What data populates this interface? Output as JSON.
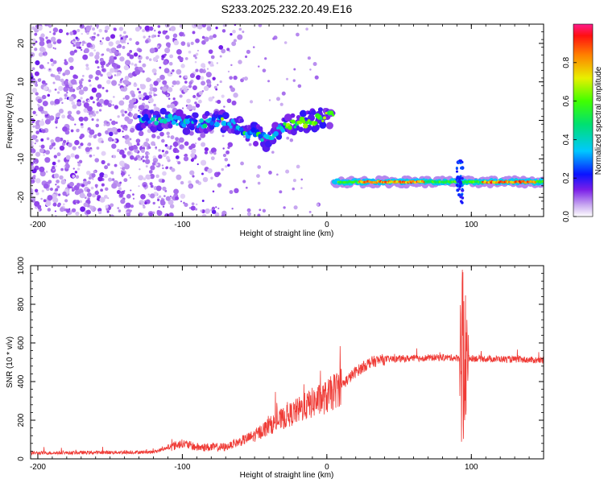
{
  "title": "S233.2025.232.20.49.E16",
  "chart_data": [
    {
      "type": "heatmap",
      "name": "spectrogram",
      "xlabel": "Height of straight line (km)",
      "ylabel": "Frequency (Hz)",
      "xlim": [
        -205,
        150
      ],
      "ylim": [
        -25,
        25
      ],
      "xticks": [
        -200,
        -100,
        0,
        100
      ],
      "yticks": [
        -20,
        -10,
        0,
        10,
        20
      ],
      "colorbar": {
        "label": "Normalized spectral amplitude",
        "range": [
          0.0,
          1.0
        ],
        "ticks": [
          0.0,
          0.2,
          0.4,
          0.6,
          0.8
        ],
        "tick_labels": [
          "0.0",
          "0.2",
          "0.4",
          "0.6",
          "0.8"
        ]
      },
      "features": {
        "noise_cloud": {
          "x_range": [
            -205,
            -60
          ],
          "y_range": [
            -25,
            25
          ],
          "amplitude": 0.1
        },
        "main_trace": [
          {
            "x": -130,
            "y": 0
          },
          {
            "x": -110,
            "y": 0.5
          },
          {
            "x": -90,
            "y": -1
          },
          {
            "x": -70,
            "y": 0
          },
          {
            "x": -55,
            "y": -3
          },
          {
            "x": -40,
            "y": -5
          },
          {
            "x": -30,
            "y": -1.5
          },
          {
            "x": -15,
            "y": -0.5
          },
          {
            "x": 0,
            "y": 1
          },
          {
            "x": 5,
            "y": 1
          }
        ],
        "lower_trace": {
          "x_range": [
            5,
            150
          ],
          "y": -16,
          "peak_amplitude": 0.95
        },
        "disturbance_x": 92
      }
    },
    {
      "type": "line",
      "name": "snr",
      "xlabel": "Height of straight line (km)",
      "ylabel": "SNR (10 * v/v)",
      "xlim": [
        -205,
        150
      ],
      "ylim": [
        0,
        1000
      ],
      "xticks": [
        -200,
        -100,
        0,
        100
      ],
      "yticks": [
        0,
        200,
        400,
        600,
        800,
        1000
      ],
      "color": "#ef3b36",
      "trend": [
        {
          "x": -205,
          "y": 30
        },
        {
          "x": -120,
          "y": 35
        },
        {
          "x": -100,
          "y": 80
        },
        {
          "x": -90,
          "y": 60
        },
        {
          "x": -70,
          "y": 60
        },
        {
          "x": -50,
          "y": 120
        },
        {
          "x": -40,
          "y": 170
        },
        {
          "x": -30,
          "y": 210
        },
        {
          "x": -20,
          "y": 250
        },
        {
          "x": -10,
          "y": 290
        },
        {
          "x": 0,
          "y": 320
        },
        {
          "x": 10,
          "y": 380
        },
        {
          "x": 20,
          "y": 450
        },
        {
          "x": 30,
          "y": 500
        },
        {
          "x": 40,
          "y": 515
        },
        {
          "x": 60,
          "y": 520
        },
        {
          "x": 80,
          "y": 525
        },
        {
          "x": 150,
          "y": 510
        }
      ],
      "spike": {
        "x": 95,
        "max": 1000,
        "min": 40
      }
    }
  ]
}
